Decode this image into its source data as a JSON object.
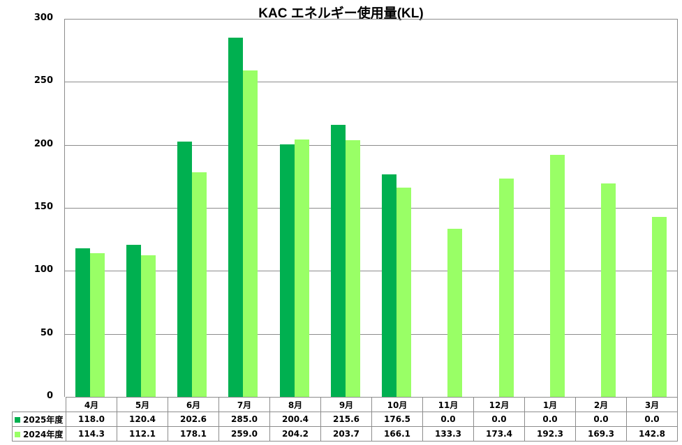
{
  "chart_data": {
    "type": "bar",
    "title": "KAC エネルギー使用量(KL)",
    "xlabel": "",
    "ylabel": "",
    "ylim": [
      0,
      300
    ],
    "yticks": [
      0,
      50,
      100,
      150,
      200,
      250,
      300
    ],
    "grid": true,
    "legend_position": "data-table",
    "categories": [
      "4月",
      "5月",
      "6月",
      "7月",
      "8月",
      "9月",
      "10月",
      "11月",
      "12月",
      "1月",
      "2月",
      "3月"
    ],
    "series": [
      {
        "name": "2025年度",
        "color": "#00b050",
        "values": [
          118.0,
          120.4,
          202.6,
          285.0,
          200.4,
          215.6,
          176.5,
          0.0,
          0.0,
          0.0,
          0.0,
          0.0
        ],
        "labels": [
          "118.0",
          "120.4",
          "202.6",
          "285.0",
          "200.4",
          "215.6",
          "176.5",
          "0.0",
          "0.0",
          "0.0",
          "0.0",
          "0.0"
        ]
      },
      {
        "name": "2024年度",
        "color": "#99ff66",
        "values": [
          114.3,
          112.1,
          178.1,
          259.0,
          204.2,
          203.7,
          166.1,
          133.3,
          173.4,
          192.3,
          169.3,
          142.8
        ],
        "labels": [
          "114.3",
          "112.1",
          "178.1",
          "259.0",
          "204.2",
          "203.7",
          "166.1",
          "133.3",
          "173.4",
          "192.3",
          "169.3",
          "142.8"
        ]
      }
    ]
  }
}
